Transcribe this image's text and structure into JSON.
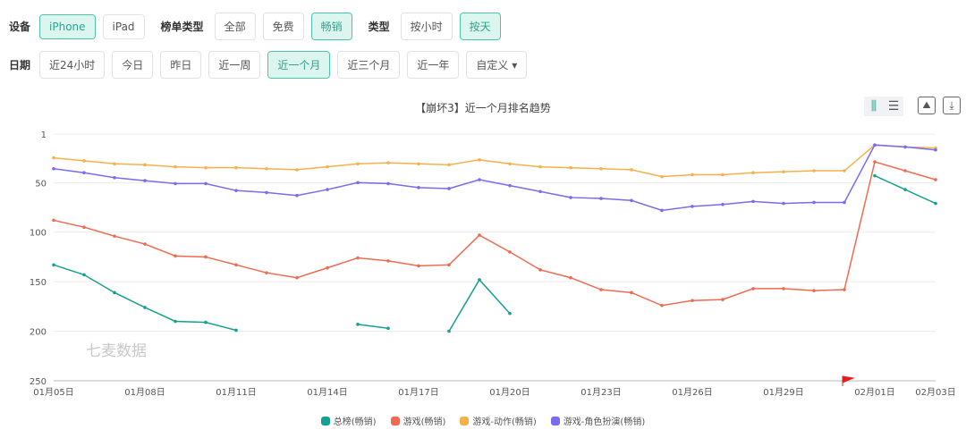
{
  "filters": {
    "device_label": "设备",
    "devices": [
      {
        "label": "iPhone",
        "active": true
      },
      {
        "label": "iPad",
        "active": false
      }
    ],
    "list_type_label": "榜单类型",
    "list_types": [
      {
        "label": "全部",
        "active": false
      },
      {
        "label": "免费",
        "active": false
      },
      {
        "label": "畅销",
        "active": true
      }
    ],
    "type_label": "类型",
    "types": [
      {
        "label": "按小时",
        "active": false
      },
      {
        "label": "按天",
        "active": true
      }
    ],
    "date_label": "日期",
    "dates": [
      {
        "label": "近24小时",
        "active": false
      },
      {
        "label": "今日",
        "active": false
      },
      {
        "label": "昨日",
        "active": false
      },
      {
        "label": "近一周",
        "active": false
      },
      {
        "label": "近一个月",
        "active": true
      },
      {
        "label": "近三个月",
        "active": false
      },
      {
        "label": "近一年",
        "active": false
      },
      {
        "label": "自定义 ▾",
        "active": false
      }
    ]
  },
  "watermark": "七麦数据",
  "chart_data": {
    "type": "line",
    "title": "【崩坏3】近一个月排名趋势",
    "y_inverted": true,
    "ylim": [
      1,
      250
    ],
    "yticks": [
      1,
      50,
      100,
      150,
      200,
      250
    ],
    "x": [
      "01月05日",
      "01月06日",
      "01月07日",
      "01月08日",
      "01月09日",
      "01月10日",
      "01月11日",
      "01月12日",
      "01月13日",
      "01月14日",
      "01月15日",
      "01月16日",
      "01月17日",
      "01月18日",
      "01月19日",
      "01月20日",
      "01月21日",
      "01月22日",
      "01月23日",
      "01月24日",
      "01月25日",
      "01月26日",
      "01月27日",
      "01月28日",
      "01月29日",
      "01月30日",
      "01月31日",
      "02月01日",
      "02月02日",
      "02月03日"
    ],
    "xtick_labels": [
      "01月05日",
      "01月08日",
      "01月11日",
      "01月14日",
      "01月17日",
      "01月20日",
      "01月23日",
      "01月26日",
      "01月29日",
      "02月01日",
      "02月03日"
    ],
    "series": [
      {
        "name": "总榜(畅销)",
        "color": "#17a08f",
        "values": [
          133,
          143,
          161,
          176,
          190,
          191,
          199,
          null,
          null,
          null,
          193,
          197,
          null,
          200,
          148,
          182,
          null,
          null,
          null,
          null,
          null,
          null,
          null,
          null,
          null,
          null,
          null,
          43,
          57,
          71
        ]
      },
      {
        "name": "游戏(畅销)",
        "color": "#ef6a50",
        "values": [
          88,
          95,
          104,
          112,
          124,
          125,
          133,
          141,
          146,
          136,
          126,
          129,
          134,
          133,
          103,
          120,
          138,
          146,
          158,
          161,
          174,
          169,
          168,
          157,
          157,
          159,
          158,
          29,
          38,
          47
        ]
      },
      {
        "name": "游戏-动作(畅销)",
        "color": "#f5b14c",
        "values": [
          25,
          28,
          31,
          32,
          34,
          35,
          35,
          36,
          37,
          34,
          31,
          30,
          31,
          32,
          27,
          31,
          34,
          35,
          36,
          37,
          44,
          42,
          42,
          40,
          39,
          38,
          38,
          12,
          14,
          15
        ]
      },
      {
        "name": "游戏-角色扮演(畅销)",
        "color": "#7a6bef",
        "values": [
          36,
          40,
          45,
          48,
          51,
          51,
          58,
          60,
          63,
          57,
          50,
          51,
          55,
          56,
          47,
          53,
          59,
          65,
          66,
          68,
          78,
          74,
          72,
          69,
          71,
          70,
          70,
          12,
          14,
          17
        ]
      }
    ],
    "legend_position": "bottom",
    "grid": true
  }
}
